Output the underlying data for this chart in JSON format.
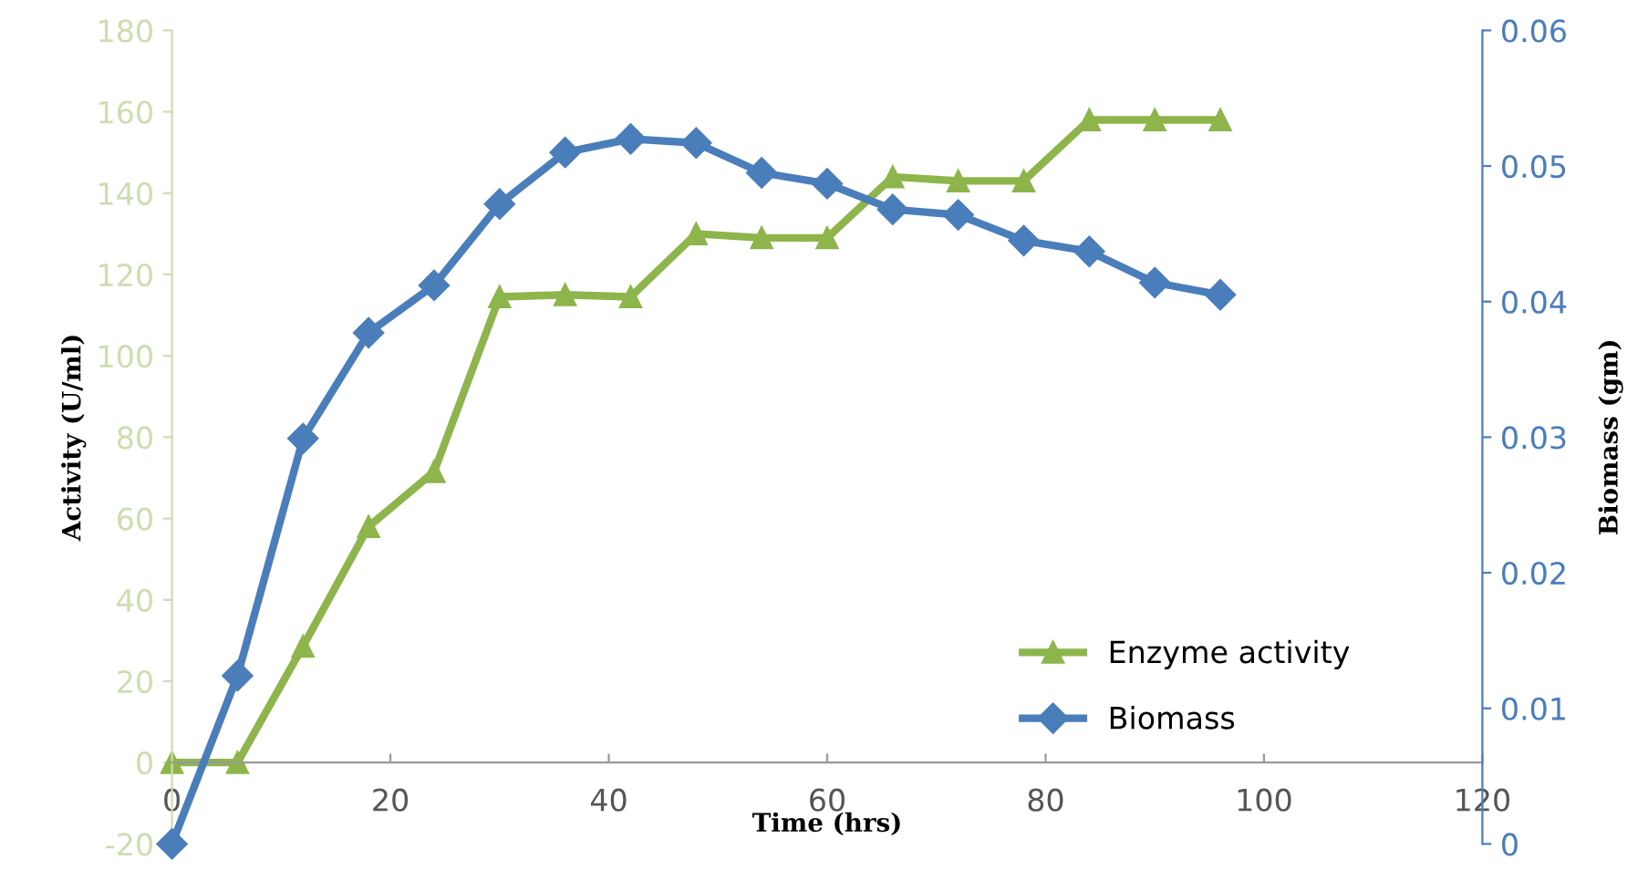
{
  "chart_data": {
    "type": "line",
    "xlabel": "Time (hrs)",
    "ylabel": "Activity (U/ml)",
    "y2label": "Biomass (gm)",
    "x": [
      0,
      6,
      12,
      18,
      24,
      30,
      36,
      42,
      48,
      54,
      60,
      66,
      72,
      78,
      84,
      90,
      96
    ],
    "series": [
      {
        "name": "Enzyme activity",
        "color": "#8db54b",
        "marker": "triangle",
        "values": [
          0,
          0,
          28.6,
          58,
          71.5,
          114.5,
          115,
          114.5,
          130,
          129,
          129,
          144,
          143,
          143,
          158,
          158,
          158
        ]
      },
      {
        "name": "Biomass",
        "color": "#4a7ebb",
        "marker": "diamond",
        "axis": "y2",
        "values": [
          0,
          0.0124,
          0.0299,
          0.0377,
          0.0412,
          0.0472,
          0.051,
          0.052,
          0.0517,
          0.0495,
          0.0487,
          0.0468,
          0.0464,
          0.0445,
          0.0437,
          0.0414,
          0.0405
        ]
      }
    ],
    "xlim": [
      0,
      120
    ],
    "xticks": [
      0,
      20,
      40,
      60,
      80,
      100,
      120
    ],
    "ylim": [
      -20,
      180
    ],
    "yticks": [
      -20,
      0,
      20,
      40,
      60,
      80,
      100,
      120,
      140,
      160,
      180
    ],
    "y2lim": [
      0,
      0.06
    ],
    "y2ticks": [
      0,
      0.01,
      0.02,
      0.03,
      0.04,
      0.05,
      0.06
    ],
    "grid": false,
    "legend": "bottom right",
    "line_style": "solid"
  }
}
